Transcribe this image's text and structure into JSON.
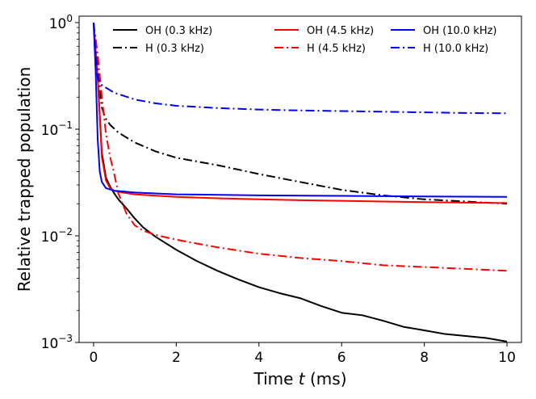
{
  "chart_data": {
    "type": "line",
    "xlabel": "Time t (ms)",
    "xlabel_prefix": "Time ",
    "xlabel_var": "t",
    "xlabel_suffix": " (ms)",
    "ylabel": "Relative trapped population",
    "yscale": "log",
    "xlim": [
      -0.35,
      10.35
    ],
    "ylim": [
      0.001,
      1.15
    ],
    "xticks": [
      0,
      2,
      4,
      6,
      8,
      10
    ],
    "xtick_labels": [
      "0",
      "2",
      "4",
      "6",
      "8",
      "10"
    ],
    "yticks": [
      {
        "value": 0.001,
        "base": "10",
        "exp": "−3"
      },
      {
        "value": 0.01,
        "base": "10",
        "exp": "−2"
      },
      {
        "value": 0.1,
        "base": "10",
        "exp": "−1"
      },
      {
        "value": 1,
        "base": "10",
        "exp": "0"
      }
    ],
    "legend_position": "top",
    "series": [
      {
        "name": "OH (0.3 kHz)",
        "color": "#000000",
        "style": "solid",
        "x": [
          0,
          0.1,
          0.2,
          0.3,
          0.4,
          0.5,
          0.6,
          0.8,
          1.0,
          1.2,
          1.5,
          2.0,
          2.5,
          3.0,
          3.5,
          4.0,
          4.5,
          5.0,
          5.5,
          6.0,
          6.5,
          7.0,
          7.5,
          8.0,
          8.5,
          9.0,
          9.5,
          10.0
        ],
        "values": [
          1.0,
          0.3,
          0.06,
          0.035,
          0.029,
          0.025,
          0.022,
          0.018,
          0.0145,
          0.012,
          0.0098,
          0.0074,
          0.0058,
          0.0047,
          0.0039,
          0.0033,
          0.0029,
          0.0026,
          0.0022,
          0.0019,
          0.0018,
          0.0016,
          0.0014,
          0.0013,
          0.0012,
          0.00115,
          0.0011,
          0.00102
        ]
      },
      {
        "name": "H (0.3 kHz)",
        "color": "#000000",
        "style": "dashdot",
        "x": [
          0,
          0.05,
          0.1,
          0.15,
          0.2,
          0.25,
          0.3,
          0.4,
          0.6,
          1.0,
          1.5,
          2.0,
          3.0,
          4.0,
          5.0,
          6.0,
          7.0,
          8.0,
          9.0,
          10.0
        ],
        "values": [
          1.0,
          0.6,
          0.35,
          0.22,
          0.16,
          0.14,
          0.125,
          0.11,
          0.093,
          0.075,
          0.062,
          0.054,
          0.046,
          0.038,
          0.032,
          0.027,
          0.024,
          0.022,
          0.021,
          0.02
        ]
      },
      {
        "name": "OH (4.5 kHz)",
        "color": "#ff0000",
        "style": "solid",
        "x": [
          0,
          0.1,
          0.2,
          0.3,
          0.4,
          0.5,
          0.7,
          1.0,
          1.5,
          2.0,
          3.0,
          4.0,
          5.0,
          6.0,
          7.0,
          8.0,
          9.0,
          10.0
        ],
        "values": [
          1.0,
          0.3,
          0.055,
          0.033,
          0.028,
          0.0265,
          0.0255,
          0.0245,
          0.0238,
          0.0232,
          0.0225,
          0.022,
          0.0216,
          0.0213,
          0.021,
          0.0207,
          0.0205,
          0.0203
        ]
      },
      {
        "name": "H (4.5 kHz)",
        "color": "#ff0000",
        "style": "dashdot",
        "x": [
          0,
          0.1,
          0.2,
          0.3,
          0.4,
          0.5,
          0.6,
          0.8,
          1.0,
          1.2,
          1.5,
          2.0,
          3.0,
          4.0,
          5.0,
          6.0,
          7.0,
          8.0,
          9.0,
          10.0
        ],
        "values": [
          1.0,
          0.5,
          0.2,
          0.09,
          0.055,
          0.038,
          0.025,
          0.016,
          0.0125,
          0.0112,
          0.0102,
          0.0092,
          0.0078,
          0.0068,
          0.0062,
          0.0058,
          0.0053,
          0.0051,
          0.0049,
          0.0047
        ]
      },
      {
        "name": "OH (10.0 kHz)",
        "color": "#0000ff",
        "style": "solid",
        "x": [
          0,
          0.05,
          0.1,
          0.15,
          0.2,
          0.3,
          0.5,
          1.0,
          2.0,
          4.0,
          6.0,
          8.0,
          10.0
        ],
        "values": [
          1.0,
          0.35,
          0.08,
          0.04,
          0.032,
          0.028,
          0.0265,
          0.0255,
          0.0245,
          0.024,
          0.0237,
          0.0234,
          0.0232
        ]
      },
      {
        "name": "H (10.0 kHz)",
        "color": "#0000ff",
        "style": "dashdot",
        "x": [
          0,
          0.05,
          0.1,
          0.2,
          0.3,
          0.5,
          1.0,
          1.5,
          2.0,
          3.0,
          4.0,
          5.0,
          6.0,
          7.0,
          8.0,
          9.0,
          10.0
        ],
        "values": [
          1.0,
          0.5,
          0.3,
          0.26,
          0.245,
          0.22,
          0.19,
          0.175,
          0.166,
          0.158,
          0.153,
          0.15,
          0.148,
          0.146,
          0.144,
          0.142,
          0.141
        ]
      }
    ]
  }
}
